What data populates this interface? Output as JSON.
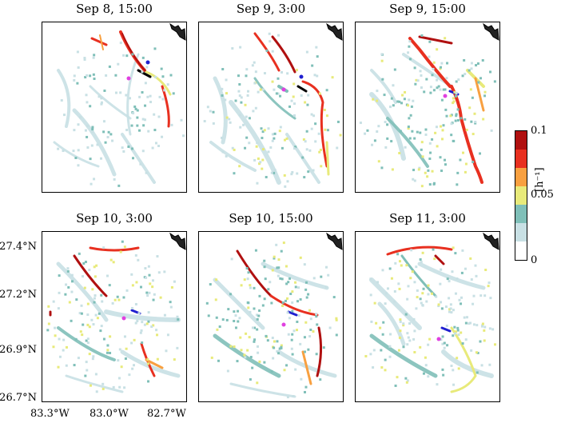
{
  "chart_data": {
    "type": "heatmap",
    "panels": [
      {
        "title": "Sep 8, 15:00"
      },
      {
        "title": "Sep 9, 3:00"
      },
      {
        "title": "Sep 9, 15:00"
      },
      {
        "title": "Sep 10, 3:00"
      },
      {
        "title": "Sep 10, 15:00"
      },
      {
        "title": "Sep 11, 3:00"
      }
    ],
    "y_ticks": [
      "27.4°N",
      "27.2°N",
      "26.9°N",
      "26.7°N"
    ],
    "x_ticks": [
      "83.3°W",
      "83.0°W",
      "82.7°W"
    ],
    "colorbar": {
      "ticks": [
        "0.1",
        "0.05",
        "0"
      ],
      "units": "[h⁻¹]",
      "range": [
        0,
        0.1
      ],
      "colors": [
        "#ffffff",
        "#c8e0e4",
        "#7fbfb8",
        "#e8ea7a",
        "#f8a040",
        "#e83020",
        "#b01010"
      ]
    },
    "markers": {
      "blue": "#2020d0",
      "magenta": "#e040e0"
    }
  }
}
